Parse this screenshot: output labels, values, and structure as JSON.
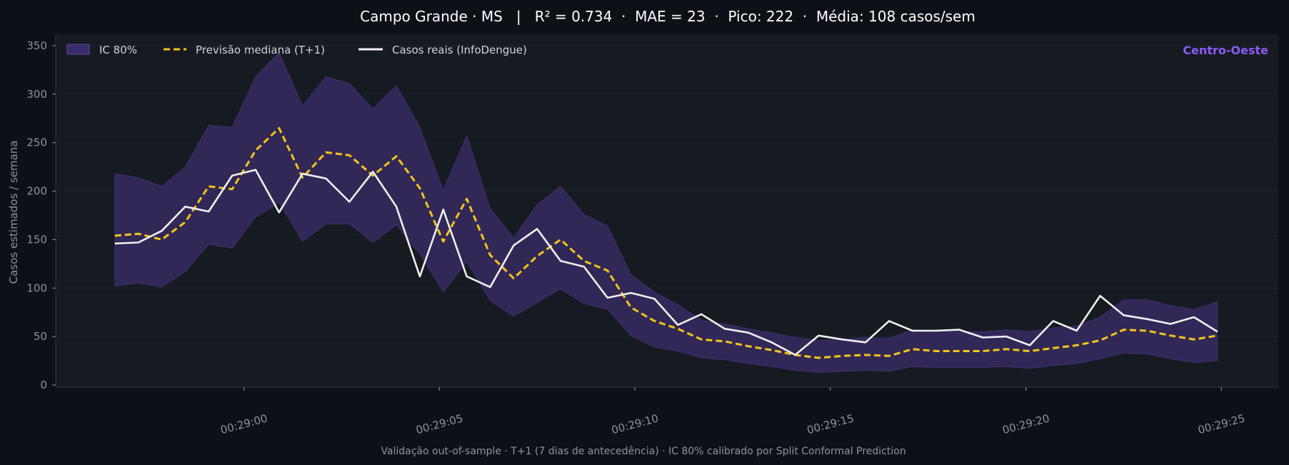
{
  "header": {
    "title": "Campo Grande · MS   |   R² = 0.734  ·  MAE = 23  ·  Pico: 222  ·  Média: 108 casos/sem"
  },
  "footer": {
    "caption": "Validação out-of-sample · T+1 (7 dias de antecedência) · IC 80% calibrado por Split Conformal Prediction"
  },
  "region_badge": "Centro-Oeste",
  "colors": {
    "background": "#0d1117",
    "plot_background": "#161b22",
    "band": "#3b2d6b",
    "forecast": "#f5c518",
    "actual": "#f0f0f0",
    "region": "#8b5cf6",
    "axis_text": "#8b949e"
  },
  "chart_data": {
    "type": "line",
    "title": "Campo Grande · MS   |   R² = 0.734  ·  MAE = 23  ·  Pico: 222  ·  Média: 108 casos/sem",
    "xlabel": "",
    "ylabel": "Casos estimados / semana",
    "ylim": [
      0,
      360
    ],
    "yticks": [
      0,
      50,
      100,
      150,
      200,
      250,
      300,
      350
    ],
    "xticks": [
      "00:29:00",
      "00:29:05",
      "00:29:10",
      "00:29:15",
      "00:29:20",
      "00:29:25"
    ],
    "x_seconds": [
      -3.3,
      -2.7,
      -2.1,
      -1.5,
      -0.9,
      -0.3,
      0.3,
      0.9,
      1.5,
      2.1,
      2.7,
      3.3,
      3.9,
      4.5,
      5.1,
      5.7,
      6.3,
      6.9,
      7.5,
      8.1,
      8.7,
      9.3,
      9.9,
      10.5,
      11.1,
      11.7,
      12.3,
      12.9,
      13.5,
      14.1,
      14.7,
      15.3,
      15.9,
      16.5,
      17.1,
      17.7,
      18.3,
      18.9,
      19.5,
      20.1,
      20.7,
      21.3,
      21.9,
      22.5,
      23.1,
      23.7,
      24.3,
      24.9
    ],
    "grid": true,
    "legend_position": "top-left",
    "series": [
      {
        "name": "IC 80%",
        "kind": "band",
        "lower": [
          102,
          105,
          101,
          117,
          145,
          141,
          173,
          188,
          148,
          166,
          166,
          147,
          165,
          135,
          96,
          127,
          87,
          71,
          85,
          99,
          84,
          78,
          51,
          39,
          35,
          28,
          26,
          22,
          19,
          15,
          13,
          14,
          15,
          14,
          19,
          18,
          18,
          18,
          19,
          17,
          20,
          22,
          27,
          33,
          32,
          27,
          23,
          25
        ],
        "upper": [
          218,
          214,
          205,
          225,
          268,
          266,
          318,
          343,
          288,
          318,
          311,
          285,
          309,
          266,
          201,
          257,
          182,
          152,
          186,
          205,
          176,
          164,
          114,
          96,
          83,
          67,
          63,
          58,
          54,
          49,
          46,
          47,
          49,
          48,
          57,
          56,
          55,
          55,
          57,
          55,
          59,
          61,
          70,
          88,
          88,
          82,
          78,
          86
        ]
      },
      {
        "name": "Previsão mediana (T+1)",
        "kind": "dashed",
        "values": [
          154,
          156,
          150,
          168,
          205,
          202,
          242,
          265,
          214,
          240,
          237,
          216,
          236,
          203,
          148,
          192,
          134,
          110,
          133,
          150,
          128,
          118,
          80,
          66,
          58,
          47,
          45,
          40,
          36,
          31,
          28,
          30,
          31,
          30,
          37,
          35,
          35,
          35,
          37,
          35,
          38,
          41,
          46,
          57,
          56,
          51,
          47,
          51
        ]
      },
      {
        "name": "Casos reais (InfoDengue)",
        "kind": "solid",
        "values": [
          146,
          147,
          159,
          184,
          179,
          216,
          222,
          178,
          218,
          213,
          189,
          220,
          184,
          112,
          181,
          112,
          101,
          144,
          161,
          128,
          122,
          90,
          95,
          89,
          62,
          73,
          58,
          54,
          44,
          31,
          51,
          47,
          44,
          66,
          56,
          56,
          57,
          49,
          50,
          41,
          66,
          56,
          92,
          72,
          68,
          63,
          70,
          55
        ]
      }
    ]
  }
}
